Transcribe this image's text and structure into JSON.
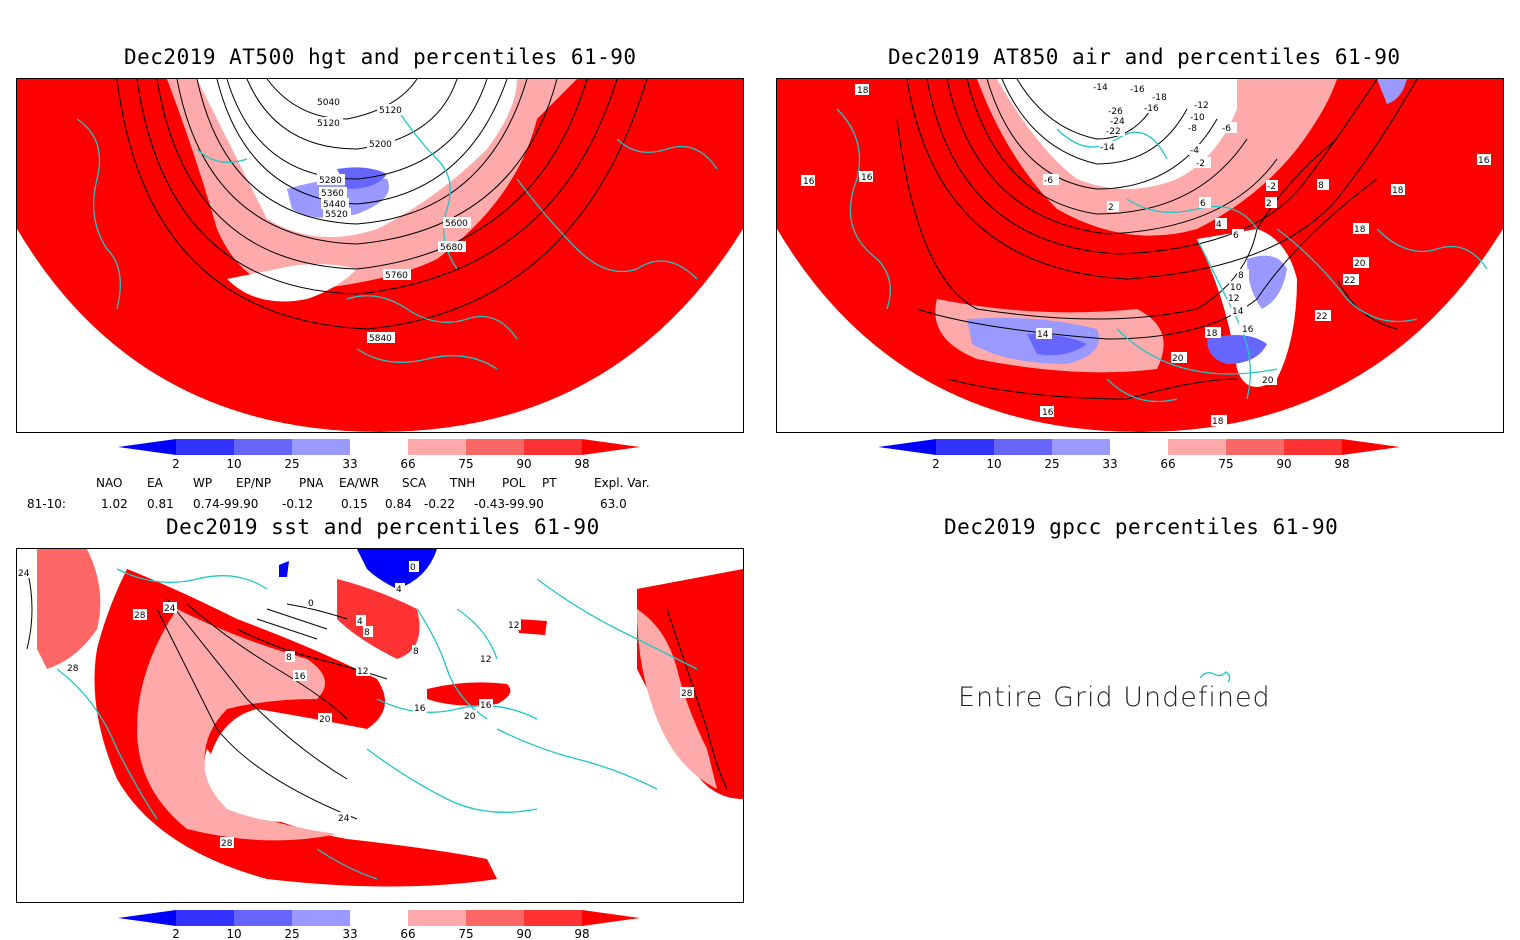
{
  "panels": {
    "hgt": {
      "title": "Dec2019 AT500 hgt and percentiles 61-90",
      "contour_labels": [
        "5040",
        "5120",
        "5120",
        "5200",
        "5280",
        "5360",
        "5440",
        "5520",
        "5600",
        "5680",
        "5760",
        "5840"
      ]
    },
    "air": {
      "title": "Dec2019 AT850 air and percentiles 61-90",
      "contour_labels": [
        "18",
        "16",
        "16",
        "16",
        "-14",
        "-16",
        "-18",
        "-16",
        "-26",
        "-24",
        "-22",
        "-12",
        "-10",
        "-8",
        "-6",
        "-4",
        "-2",
        "-6",
        "-2",
        "2",
        "6",
        "4",
        "2",
        "8",
        "10",
        "12",
        "14",
        "16",
        "18",
        "18",
        "20",
        "22",
        "22",
        "14",
        "16",
        "18",
        "20",
        "20",
        "18",
        "16",
        "8",
        "6",
        "-14"
      ]
    },
    "sst": {
      "title": "Dec2019 sst and percentiles 61-90",
      "contour_labels": [
        "24",
        "28",
        "28",
        "24",
        "0",
        "4",
        "0",
        "4",
        "8",
        "12",
        "16",
        "20",
        "24",
        "28",
        "28",
        "8",
        "12",
        "16",
        "20",
        "16",
        "12",
        "8"
      ]
    },
    "gpcc": {
      "title": "Dec2019 gpcc percentiles 61-90",
      "message": "Entire Grid Undefined"
    }
  },
  "colorbar": {
    "ticks": [
      "2",
      "10",
      "25",
      "33",
      "66",
      "75",
      "90",
      "98"
    ],
    "colors": {
      "blue_dark": "#0000ff",
      "blue_mid": "#3333ff",
      "blue_light1": "#6666ff",
      "blue_light2": "#9999ff",
      "white": "#ffffff",
      "red_light1": "#ffaaaa",
      "red_light2": "#ff6666",
      "red_mid": "#ff3333",
      "red_dark": "#ff0000"
    }
  },
  "indices": {
    "header": [
      "NAO",
      "EA",
      "WP",
      "EP/NP",
      "PNA",
      "EA/WR",
      "SCA",
      "TNH",
      "POL",
      "PT",
      "Expl. Var."
    ],
    "row_label": "81-10:",
    "values": [
      "1.02",
      "0.81",
      "0.74-99.90",
      "-0.12",
      "0.15",
      "0.84",
      "-0.22",
      "-0.43-99.90",
      "63.0"
    ]
  },
  "map_colors": {
    "coast": "#21c6c6",
    "red": "#ff0000",
    "contour": "#000000"
  }
}
